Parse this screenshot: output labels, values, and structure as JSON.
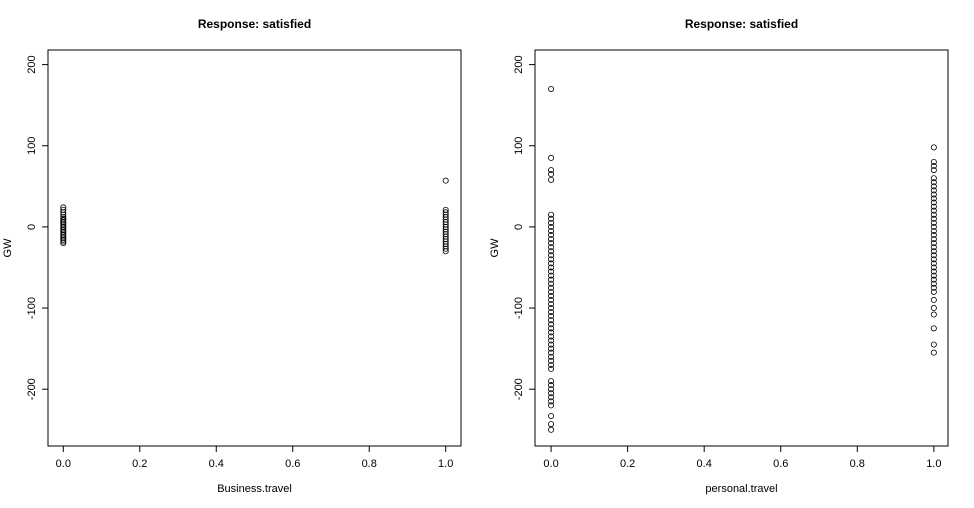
{
  "chart_data": [
    {
      "type": "scatter",
      "title": "Response: satisfied",
      "xlabel": "Business.travel",
      "ylabel": "GW",
      "xlim": [
        -0.04,
        1.04
      ],
      "ylim": [
        -270,
        218
      ],
      "xticks": [
        {
          "value": 0,
          "label": "0.0"
        },
        0.2,
        0.4,
        0.6,
        0.8,
        {
          "value": 1,
          "label": "1.0"
        }
      ],
      "yticks": [
        -200,
        -100,
        0,
        100,
        200
      ],
      "color": "#000000",
      "x": [
        0,
        0,
        0,
        0,
        0,
        0,
        0,
        0,
        0,
        0,
        0,
        0,
        0,
        0,
        0,
        0,
        0,
        0,
        0,
        0,
        0,
        1,
        1,
        1,
        1,
        1,
        1,
        1,
        1,
        1,
        1,
        1,
        1,
        1,
        1,
        1,
        1,
        1,
        1,
        1
      ],
      "y": [
        24,
        21,
        18,
        15,
        12,
        10,
        8,
        6,
        4,
        2,
        0,
        -2,
        -4,
        -6,
        -8,
        -10,
        -12,
        -14,
        -16,
        -18,
        -20,
        57,
        21,
        18,
        15,
        12,
        9,
        6,
        3,
        0,
        -3,
        -6,
        -9,
        -12,
        -15,
        -18,
        -21,
        -24,
        -27,
        -30
      ]
    },
    {
      "type": "scatter",
      "title": "Response: satisfied",
      "xlabel": "personal.travel",
      "ylabel": "GW",
      "xlim": [
        -0.042,
        1.037
      ],
      "ylim": [
        -270,
        218
      ],
      "xticks": [
        {
          "value": 0,
          "label": "0.0"
        },
        0.2,
        0.4,
        0.6,
        0.8,
        {
          "value": 1,
          "label": "1.0"
        }
      ],
      "yticks": [
        -200,
        -100,
        0,
        100,
        200
      ],
      "color": "#000000",
      "x": [
        0,
        0,
        0,
        0,
        0,
        0,
        0,
        0,
        0,
        0,
        0,
        0,
        0,
        0,
        0,
        0,
        0,
        0,
        0,
        0,
        0,
        0,
        0,
        0,
        0,
        0,
        0,
        0,
        0,
        0,
        0,
        0,
        0,
        0,
        0,
        0,
        0,
        0,
        0,
        0,
        0,
        0,
        0,
        0,
        0,
        0,
        0,
        0,
        0,
        0,
        0,
        0,
        0,
        0,
        1,
        1,
        1,
        1,
        1,
        1,
        1,
        1,
        1,
        1,
        1,
        1,
        1,
        1,
        1,
        1,
        1,
        1,
        1,
        1,
        1,
        1,
        1,
        1,
        1,
        1,
        1,
        1,
        1,
        1,
        1,
        1,
        1,
        1,
        1,
        1,
        1,
        1,
        1
      ],
      "y": [
        170,
        85,
        70,
        65,
        58,
        15,
        10,
        5,
        0,
        -5,
        -10,
        -15,
        -20,
        -25,
        -30,
        -35,
        -40,
        -45,
        -50,
        -55,
        -60,
        -65,
        -70,
        -75,
        -80,
        -85,
        -90,
        -95,
        -100,
        -105,
        -110,
        -115,
        -120,
        -125,
        -130,
        -135,
        -140,
        -145,
        -150,
        -155,
        -160,
        -165,
        -170,
        -175,
        -190,
        -195,
        -200,
        -205,
        -210,
        -215,
        -220,
        -233,
        -243,
        -250,
        98,
        80,
        75,
        70,
        60,
        55,
        50,
        45,
        40,
        35,
        30,
        25,
        20,
        15,
        10,
        5,
        0,
        -5,
        -10,
        -15,
        -20,
        -25,
        -30,
        -35,
        -40,
        -45,
        -50,
        -55,
        -60,
        -65,
        -70,
        -75,
        -80,
        -90,
        -100,
        -108,
        -125,
        -145,
        -155
      ]
    }
  ]
}
